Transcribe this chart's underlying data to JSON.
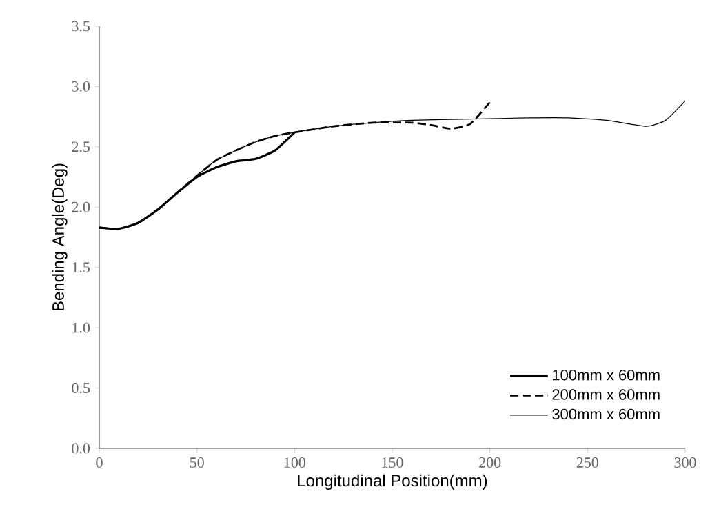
{
  "chart_data": {
    "type": "line",
    "xlabel": "Longitudinal Position(mm)",
    "ylabel": "Bending Angle(Deg)",
    "xlim": [
      0,
      300
    ],
    "xticks": [
      0,
      50,
      100,
      150,
      200,
      250,
      300
    ],
    "ylim": [
      0,
      3.5
    ],
    "yticks": [
      {
        "value": 0,
        "label": "0.0"
      },
      {
        "value": 0.5,
        "label": "0.5"
      },
      {
        "value": 1,
        "label": "1.0"
      },
      {
        "value": 1.5,
        "label": "1.5"
      },
      {
        "value": 2,
        "label": "2.0"
      },
      {
        "value": 2.5,
        "label": "2.5"
      },
      {
        "value": 3,
        "label": "3.0"
      },
      {
        "value": 3.5,
        "label": "3.5"
      }
    ],
    "grid": false,
    "legend": "bottom right",
    "marker": "none",
    "series": [
      {
        "name": "100mm x 60mm",
        "color": "#000000",
        "line_style": "solid",
        "x": [
          0,
          10,
          20,
          30,
          40,
          50,
          60,
          70,
          80,
          90,
          100
        ],
        "values": [
          1.83,
          1.82,
          1.87,
          1.98,
          2.12,
          2.25,
          2.33,
          2.38,
          2.4,
          2.47,
          2.62
        ]
      },
      {
        "name": "200mm x 60mm",
        "color": "#000000",
        "line_style": "dashed",
        "x": [
          0,
          10,
          20,
          30,
          40,
          50,
          60,
          70,
          80,
          90,
          100,
          120,
          140,
          160,
          170,
          180,
          190,
          200
        ],
        "values": [
          1.83,
          1.82,
          1.87,
          1.98,
          2.12,
          2.26,
          2.39,
          2.47,
          2.54,
          2.59,
          2.62,
          2.67,
          2.7,
          2.7,
          2.68,
          2.65,
          2.69,
          2.87
        ]
      },
      {
        "name": "300mm x 60mm",
        "color": "#000000",
        "line_style": "solid",
        "x": [
          0,
          10,
          20,
          30,
          40,
          50,
          60,
          70,
          80,
          90,
          100,
          120,
          140,
          160,
          190,
          220,
          240,
          260,
          280,
          290,
          300
        ],
        "values": [
          1.83,
          1.82,
          1.87,
          1.98,
          2.12,
          2.26,
          2.39,
          2.47,
          2.54,
          2.59,
          2.62,
          2.67,
          2.7,
          2.72,
          2.73,
          2.74,
          2.74,
          2.72,
          2.67,
          2.72,
          2.88
        ]
      }
    ]
  }
}
